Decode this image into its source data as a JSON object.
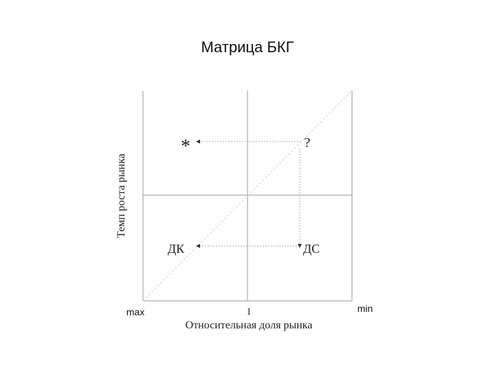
{
  "title": "Матрица БКГ",
  "axes": {
    "y_label": "Темп роста рынка",
    "x_label": "Относительная доля рынка",
    "x_left": "max",
    "x_middle": "1",
    "x_right": "min"
  },
  "quadrants": {
    "top_left": "*",
    "top_right": "?",
    "bottom_left": "ДК",
    "bottom_right": "ДС"
  }
}
